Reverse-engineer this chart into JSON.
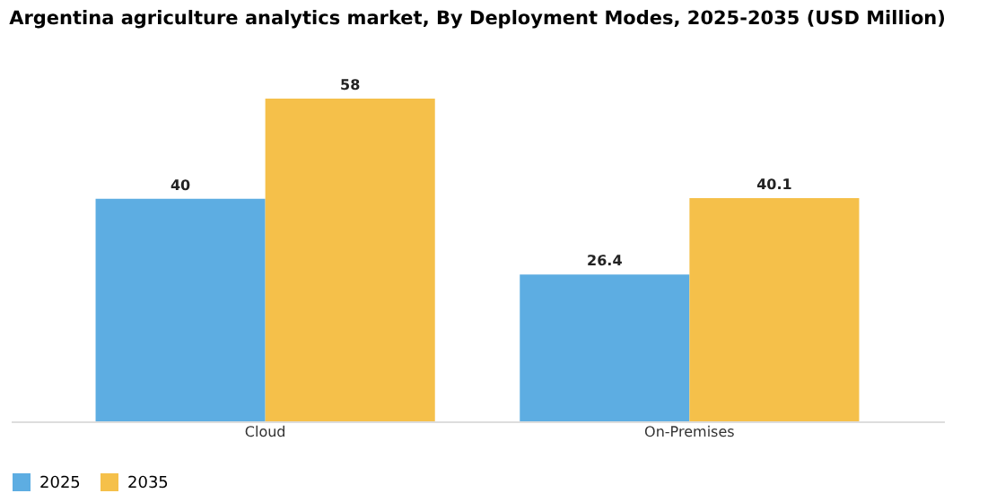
{
  "chart_data": {
    "type": "bar",
    "title": "Argentina agriculture analytics market, By Deployment Modes, 2025-2035 (USD Million)",
    "categories": [
      "Cloud",
      "On-Premises"
    ],
    "series": [
      {
        "name": "2025",
        "color": "#5dade2",
        "values": [
          40,
          26.4
        ]
      },
      {
        "name": "2035",
        "color": "#f5c04a",
        "values": [
          58,
          40.1
        ]
      }
    ],
    "data_labels": true,
    "legend": "bottom",
    "grid": false
  }
}
